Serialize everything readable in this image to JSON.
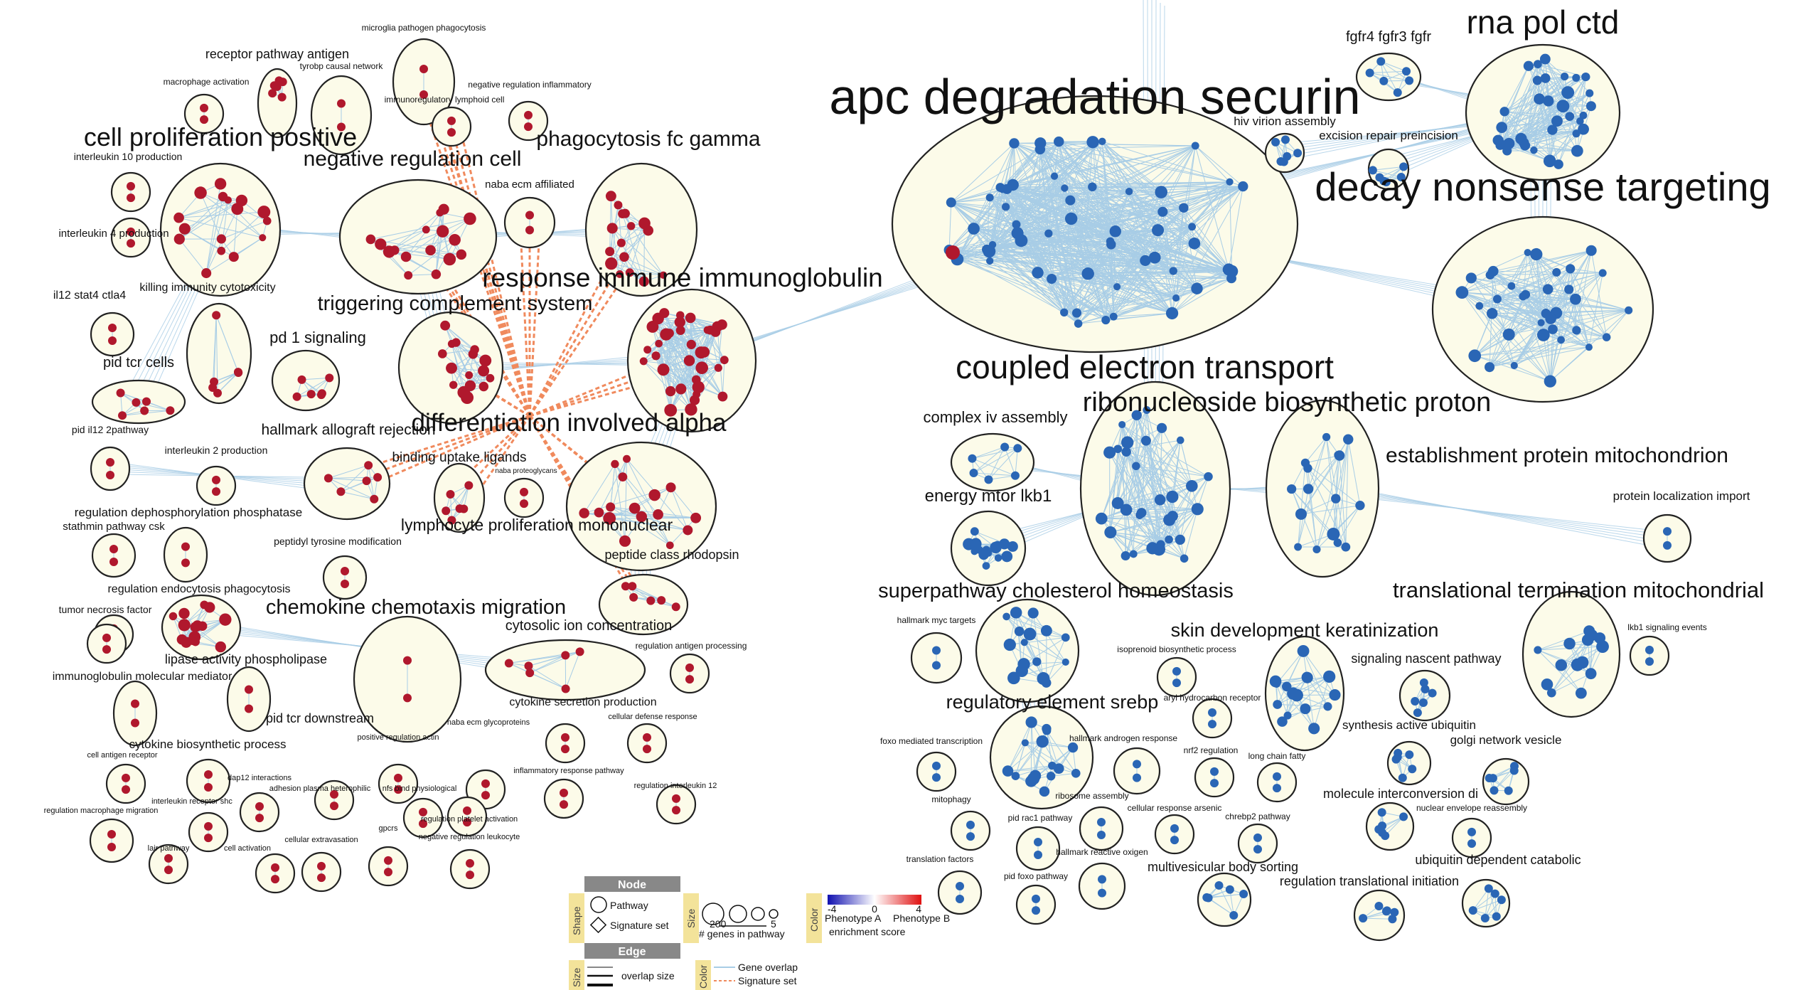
{
  "colors": {
    "cluster_fill": "#fcfbe9",
    "cluster_stroke": "#222222",
    "phenotype_a_node": "#2a66b5",
    "phenotype_b_node": "#b0182d",
    "gene_overlap_edge": "#a8cde6",
    "signature_set_edge": "#f08a5d"
  },
  "clusters": [
    {
      "id": "apc",
      "label": "apc degradation securin",
      "size": "xl",
      "phenotype": "A"
    },
    {
      "id": "rna",
      "label": "rna pol ctd",
      "size": "l",
      "phenotype": "A"
    },
    {
      "id": "fgfr",
      "label": "fgfr4 fgfr3 fgfr",
      "size": "s",
      "phenotype": "A"
    },
    {
      "id": "hiv",
      "label": "hiv virion assembly",
      "size": "s",
      "phenotype": "A"
    },
    {
      "id": "excision",
      "label": "excision repair preincision",
      "size": "s",
      "phenotype": "A"
    },
    {
      "id": "decay",
      "label": "decay nonsense targeting",
      "size": "l",
      "phenotype": "A"
    },
    {
      "id": "coupled",
      "label": "coupled electron transport",
      "size": "l",
      "phenotype": "A"
    },
    {
      "id": "ribo",
      "label": "ribonucleoside biosynthetic proton",
      "size": "l",
      "phenotype": "A"
    },
    {
      "id": "complex_iv",
      "label": "complex iv assembly",
      "size": "s",
      "phenotype": "A"
    },
    {
      "id": "estab",
      "label": "establishment protein mitochondrion",
      "size": "m",
      "phenotype": "A"
    },
    {
      "id": "protloc",
      "label": "protein localization import",
      "size": "xs",
      "phenotype": "A"
    },
    {
      "id": "energy",
      "label": "energy mtor lkb1",
      "size": "m",
      "phenotype": "A"
    },
    {
      "id": "superpath",
      "label": "superpathway cholesterol homeostasis",
      "size": "m",
      "phenotype": "A"
    },
    {
      "id": "transl_term",
      "label": "translational termination mitochondrial",
      "size": "m",
      "phenotype": "A"
    },
    {
      "id": "myc",
      "label": "hallmark myc targets",
      "size": "xs",
      "phenotype": "A"
    },
    {
      "id": "isoprenoid",
      "label": "isoprenoid biosynthetic process",
      "size": "xs",
      "phenotype": "A"
    },
    {
      "id": "skin",
      "label": "skin development keratinization",
      "size": "m",
      "phenotype": "A"
    },
    {
      "id": "signaling_nascent",
      "label": "signaling nascent pathway",
      "size": "s",
      "phenotype": "A"
    },
    {
      "id": "lkb1",
      "label": "lkb1 signaling events",
      "size": "xs",
      "phenotype": "A"
    },
    {
      "id": "arylh",
      "label": "aryl hydrocarbon receptor",
      "size": "xs",
      "phenotype": "A"
    },
    {
      "id": "regsrebp",
      "label": "regulatory element srebp",
      "size": "m",
      "phenotype": "A"
    },
    {
      "id": "synth_ubiq",
      "label": "synthesis active ubiquitin",
      "size": "s",
      "phenotype": "A"
    },
    {
      "id": "golgi",
      "label": "golgi network vesicle",
      "size": "s",
      "phenotype": "A"
    },
    {
      "id": "foxo",
      "label": "foxo mediated transcription",
      "size": "xs",
      "phenotype": "A"
    },
    {
      "id": "hall_androgen",
      "label": "hallmark androgen response",
      "size": "xs",
      "phenotype": "A"
    },
    {
      "id": "nrf2",
      "label": "nrf2 regulation",
      "size": "xs",
      "phenotype": "A"
    },
    {
      "id": "longchain",
      "label": "long chain fatty",
      "size": "xs",
      "phenotype": "A"
    },
    {
      "id": "molint",
      "label": "molecule interconversion di",
      "size": "s",
      "phenotype": "A"
    },
    {
      "id": "nuclenv",
      "label": "nuclear envelope reassembly",
      "size": "xs",
      "phenotype": "A"
    },
    {
      "id": "mitophagy",
      "label": "mitophagy",
      "size": "xs",
      "phenotype": "A"
    },
    {
      "id": "pidrac1",
      "label": "pid rac1 pathway",
      "size": "xs",
      "phenotype": "A"
    },
    {
      "id": "ribosome",
      "label": "ribosome assembly",
      "size": "xs",
      "phenotype": "A"
    },
    {
      "id": "cellarsenic",
      "label": "cellular response arsenic",
      "size": "xs",
      "phenotype": "A"
    },
    {
      "id": "chrebp2",
      "label": "chrebp2 pathway",
      "size": "xs",
      "phenotype": "A"
    },
    {
      "id": "translfactors",
      "label": "translation factors",
      "size": "xs",
      "phenotype": "A"
    },
    {
      "id": "hallreactive",
      "label": "hallmark reactive oxigen",
      "size": "xs",
      "phenotype": "A"
    },
    {
      "id": "multivesic",
      "label": "multivesicular body sorting",
      "size": "s",
      "phenotype": "A"
    },
    {
      "id": "regtransl",
      "label": "regulation translational initiation",
      "size": "s",
      "phenotype": "A"
    },
    {
      "id": "ubiqdep",
      "label": "ubiquitin dependent catabolic",
      "size": "s",
      "phenotype": "A"
    },
    {
      "id": "pidfoxo",
      "label": "pid foxo pathway",
      "size": "xs",
      "phenotype": "A"
    },
    {
      "id": "microglia",
      "label": "microglia pathogen phagocytosis",
      "size": "xs",
      "phenotype": "B"
    },
    {
      "id": "receptor",
      "label": "receptor pathway antigen",
      "size": "s",
      "phenotype": "B"
    },
    {
      "id": "tyrobp",
      "label": "tyrobp causal network",
      "size": "xs",
      "phenotype": "B"
    },
    {
      "id": "macroact",
      "label": "macrophage activation",
      "size": "xs",
      "phenotype": "B"
    },
    {
      "id": "negreginfl",
      "label": "negative regulation inflammatory",
      "size": "xs",
      "phenotype": "B"
    },
    {
      "id": "immunoreg",
      "label": "immunoregulatory lymphoid cell",
      "size": "xs",
      "phenotype": "B"
    },
    {
      "id": "cellprolif",
      "label": "cell proliferation positive",
      "size": "m",
      "phenotype": "B"
    },
    {
      "id": "il10",
      "label": "interleukin 10 production",
      "size": "xs",
      "phenotype": "B"
    },
    {
      "id": "negregcell",
      "label": "negative regulation cell",
      "size": "m",
      "phenotype": "B"
    },
    {
      "id": "phagofc",
      "label": "phagocytosis fc gamma",
      "size": "m",
      "phenotype": "B"
    },
    {
      "id": "nabaecm",
      "label": "naba ecm affiliated",
      "size": "xs",
      "phenotype": "B"
    },
    {
      "id": "il4",
      "label": "interleukin 4 production",
      "size": "xs",
      "phenotype": "B"
    },
    {
      "id": "killing",
      "label": "killing immunity cytotoxicity",
      "size": "s",
      "phenotype": "B"
    },
    {
      "id": "il12",
      "label": "il12 stat4 ctla4",
      "size": "xs",
      "phenotype": "B"
    },
    {
      "id": "response",
      "label": "response immune immunoglobulin",
      "size": "l",
      "phenotype": "B"
    },
    {
      "id": "triggering",
      "label": "triggering complement system",
      "size": "m",
      "phenotype": "B"
    },
    {
      "id": "pd1",
      "label": "pd 1 signaling",
      "size": "s",
      "phenotype": "B"
    },
    {
      "id": "pidtcr",
      "label": "pid tcr cells",
      "size": "s",
      "phenotype": "B"
    },
    {
      "id": "diff",
      "label": "differentiation involved alpha",
      "size": "m",
      "phenotype": "B"
    },
    {
      "id": "pidil12",
      "label": "pid il12 2pathway",
      "size": "xs",
      "phenotype": "B"
    },
    {
      "id": "hallallo",
      "label": "hallmark allograft rejection",
      "size": "s",
      "phenotype": "B"
    },
    {
      "id": "il2",
      "label": "interleukin 2 production",
      "size": "xs",
      "phenotype": "B"
    },
    {
      "id": "binding",
      "label": "binding uptake ligands",
      "size": "s",
      "phenotype": "B"
    },
    {
      "id": "nabaproteo",
      "label": "naba proteoglycans",
      "size": "xs",
      "phenotype": "B"
    },
    {
      "id": "regdephos",
      "label": "regulation dephosphorylation phosphatase",
      "size": "xs",
      "phenotype": "B"
    },
    {
      "id": "stathmin",
      "label": "stathmin pathway csk",
      "size": "xs",
      "phenotype": "B"
    },
    {
      "id": "peptidyl",
      "label": "peptidyl tyrosine modification",
      "size": "xs",
      "phenotype": "B"
    },
    {
      "id": "lymph",
      "label": "lymphocyte proliferation mononuclear",
      "size": "m",
      "phenotype": "B"
    },
    {
      "id": "peptide",
      "label": "peptide class rhodopsin",
      "size": "s",
      "phenotype": "B"
    },
    {
      "id": "regendo",
      "label": "regulation endocytosis phagocytosis",
      "size": "xs",
      "phenotype": "B"
    },
    {
      "id": "tnf",
      "label": "tumor necrosis factor",
      "size": "xs",
      "phenotype": "B"
    },
    {
      "id": "chemokine",
      "label": "chemokine chemotaxis migration",
      "size": "m",
      "phenotype": "B"
    },
    {
      "id": "cytosolic",
      "label": "cytosolic ion concentration",
      "size": "s",
      "phenotype": "B"
    },
    {
      "id": "regantigen",
      "label": "regulation antigen processing",
      "size": "xs",
      "phenotype": "B"
    },
    {
      "id": "lipase",
      "label": "lipase activity phospholipase",
      "size": "xs",
      "phenotype": "B"
    },
    {
      "id": "immmol",
      "label": "immunoglobulin molecular mediator",
      "size": "xs",
      "phenotype": "B"
    },
    {
      "id": "pidtcrdown",
      "label": "pid tcr downstream",
      "size": "xs",
      "phenotype": "B"
    },
    {
      "id": "cytosecr",
      "label": "cytokine secretion production",
      "size": "xs",
      "phenotype": "B"
    },
    {
      "id": "celldef",
      "label": "cellular defense response",
      "size": "xs",
      "phenotype": "B"
    },
    {
      "id": "cytobio",
      "label": "cytokine biosynthetic process",
      "size": "xs",
      "phenotype": "B"
    },
    {
      "id": "posregactin",
      "label": "positive regulation actin",
      "size": "xs",
      "phenotype": "B"
    },
    {
      "id": "nabaglyco",
      "label": "naba ecm glycoproteins",
      "size": "xs",
      "phenotype": "B"
    },
    {
      "id": "cellantigen",
      "label": "cell antigen receptor",
      "size": "xs",
      "phenotype": "B"
    },
    {
      "id": "dap12",
      "label": "dap12 interactions",
      "size": "xs",
      "phenotype": "B"
    },
    {
      "id": "adhesion",
      "label": "adhesion plasma heterophilic",
      "size": "xs",
      "phenotype": "B"
    },
    {
      "id": "nfs",
      "label": "nfs bind physiological",
      "size": "xs",
      "phenotype": "B"
    },
    {
      "id": "inflresp",
      "label": "inflammatory response pathway",
      "size": "xs",
      "phenotype": "B"
    },
    {
      "id": "regil12",
      "label": "regulation interleukin 12",
      "size": "xs",
      "phenotype": "B"
    },
    {
      "id": "il_shc",
      "label": "interleukin receptor shc",
      "size": "xs",
      "phenotype": "B"
    },
    {
      "id": "regmacro",
      "label": "regulation macrophage migration",
      "size": "xs",
      "phenotype": "B"
    },
    {
      "id": "regplatelet",
      "label": "regulation platelet activation",
      "size": "xs",
      "phenotype": "B"
    },
    {
      "id": "lair",
      "label": "lair pathway",
      "size": "xs",
      "phenotype": "B"
    },
    {
      "id": "cellact",
      "label": "cell activation",
      "size": "xs",
      "phenotype": "B"
    },
    {
      "id": "cellextra",
      "label": "cellular extravasation",
      "size": "xs",
      "phenotype": "B"
    },
    {
      "id": "gpcrs",
      "label": "gpcrs",
      "size": "xs",
      "phenotype": "B"
    },
    {
      "id": "negregleuk",
      "label": "negative regulation leukocyte",
      "size": "xs",
      "phenotype": "B"
    }
  ],
  "legend": {
    "node_header": "Node",
    "shape_label": "Shape",
    "pathway_label": "Pathway",
    "signature_label": "Signature set",
    "size_label": "Size",
    "size_values": [
      "200",
      "5"
    ],
    "genes_label": "# genes in pathway",
    "color_label": "Color",
    "color_scale": [
      "-4",
      "0",
      "4"
    ],
    "phenotype_a": "Phenotype A",
    "phenotype_b": "Phenotype B",
    "enrichment_label": "enrichment score",
    "edge_header": "Edge",
    "edge_size_label": "Size",
    "overlap_label": "overlap size",
    "edge_color_label": "Color",
    "gene_overlap_label": "Gene overlap",
    "signature_set_label": "Signature set"
  }
}
